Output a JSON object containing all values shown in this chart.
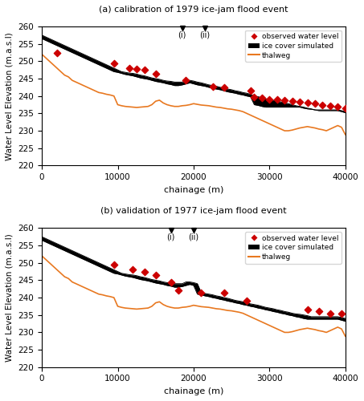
{
  "title_a": "(a) calibration of 1979 ice-jam flood event",
  "title_b": "(b) validation of 1977 ice-jam flood event",
  "xlabel": "chainage (m)",
  "ylabel": "Water Level Elevation (m.a.s.l)",
  "xlim": [
    0,
    40000
  ],
  "ylim": [
    220,
    260
  ],
  "yticks": [
    220,
    225,
    230,
    235,
    240,
    245,
    250,
    255,
    260
  ],
  "xticks": [
    0,
    10000,
    20000,
    30000,
    40000
  ],
  "marker_i_x_a": 18500,
  "marker_ii_x_a": 21500,
  "marker_i_x_b": 17000,
  "marker_ii_x_b": 20000,
  "thalweg_x": [
    0,
    500,
    1000,
    1500,
    2000,
    2500,
    3000,
    3500,
    4000,
    4500,
    5000,
    5500,
    6000,
    6500,
    7000,
    7500,
    8000,
    8500,
    9000,
    9500,
    10000,
    10500,
    11000,
    11500,
    12000,
    12500,
    13000,
    13500,
    14000,
    14500,
    15000,
    15500,
    16000,
    16500,
    17000,
    17500,
    18000,
    18500,
    19000,
    19500,
    20000,
    20500,
    21000,
    21500,
    22000,
    22500,
    23000,
    23500,
    24000,
    24500,
    25000,
    25500,
    26000,
    26500,
    27000,
    27500,
    28000,
    28500,
    29000,
    29500,
    30000,
    30500,
    31000,
    31500,
    32000,
    32500,
    33000,
    33500,
    34000,
    34500,
    35000,
    35500,
    36000,
    36500,
    37000,
    37500,
    38000,
    38500,
    39000,
    39500,
    40000
  ],
  "thalweg_y": [
    252.0,
    251.0,
    250.0,
    249.0,
    248.0,
    247.0,
    246.0,
    245.5,
    244.5,
    244.0,
    243.5,
    243.0,
    242.5,
    242.0,
    241.5,
    241.0,
    240.8,
    240.5,
    240.3,
    240.0,
    237.5,
    237.2,
    237.0,
    236.9,
    236.8,
    236.7,
    236.8,
    236.9,
    237.0,
    237.5,
    238.5,
    238.8,
    238.0,
    237.5,
    237.2,
    237.0,
    237.0,
    237.2,
    237.3,
    237.5,
    237.8,
    237.6,
    237.4,
    237.3,
    237.2,
    237.0,
    236.8,
    236.7,
    236.5,
    236.3,
    236.2,
    236.0,
    235.8,
    235.5,
    235.0,
    234.5,
    234.0,
    233.5,
    233.0,
    232.5,
    232.0,
    231.5,
    231.0,
    230.5,
    230.0,
    230.0,
    230.2,
    230.5,
    230.8,
    231.0,
    231.2,
    231.0,
    230.8,
    230.5,
    230.3,
    230.0,
    230.5,
    231.0,
    231.5,
    231.0,
    228.9
  ],
  "ice_x": [
    0,
    500,
    1000,
    1500,
    2000,
    2500,
    3000,
    3500,
    4000,
    4500,
    5000,
    5500,
    6000,
    6500,
    7000,
    7500,
    8000,
    8500,
    9000,
    9500,
    10000,
    10500,
    11000,
    11500,
    12000,
    12500,
    13000,
    13500,
    14000,
    14500,
    15000,
    15500,
    16000,
    16500,
    17000,
    17500,
    18000,
    18500,
    19000,
    19500,
    20000,
    20500,
    21000,
    21500,
    22000,
    22500,
    23000,
    23500,
    24000,
    24500,
    25000,
    25500,
    26000,
    26500,
    27000,
    27500,
    28000,
    28500,
    29000,
    29500,
    30000,
    30500,
    31000,
    31500,
    32000,
    32500,
    33000,
    33500,
    34000,
    34500,
    35000,
    35500,
    36000,
    36500,
    37000,
    37500,
    38000,
    38500,
    39000,
    39500,
    40000
  ],
  "ice_upper_a": [
    257.5,
    257.0,
    256.5,
    256.0,
    255.5,
    255.0,
    254.5,
    254.0,
    253.5,
    253.0,
    252.5,
    252.0,
    251.5,
    251.0,
    250.5,
    250.0,
    249.5,
    249.0,
    248.5,
    248.0,
    247.5,
    247.0,
    246.8,
    246.6,
    246.5,
    246.3,
    246.0,
    245.8,
    245.5,
    245.2,
    245.0,
    244.8,
    244.5,
    244.3,
    244.2,
    244.0,
    244.0,
    244.0,
    244.5,
    244.5,
    244.3,
    244.0,
    243.8,
    243.5,
    243.2,
    243.0,
    242.8,
    242.5,
    242.3,
    242.0,
    241.8,
    241.5,
    241.3,
    241.0,
    240.8,
    240.5,
    240.0,
    239.8,
    239.5,
    239.2,
    239.0,
    238.8,
    238.5,
    238.3,
    238.0,
    237.8,
    237.5,
    237.2,
    237.0,
    236.8,
    236.5,
    236.3,
    236.0,
    236.0,
    236.0,
    236.0,
    236.0,
    236.0,
    236.0,
    235.8,
    235.5
  ],
  "ice_lower_a": [
    256.5,
    256.0,
    255.5,
    255.0,
    254.5,
    254.0,
    253.5,
    253.0,
    252.5,
    252.0,
    251.5,
    251.0,
    250.5,
    250.0,
    249.5,
    249.0,
    248.5,
    248.0,
    247.5,
    247.0,
    246.8,
    246.5,
    246.2,
    246.0,
    245.8,
    245.5,
    245.2,
    245.0,
    244.8,
    244.5,
    244.2,
    244.0,
    243.8,
    243.5,
    243.3,
    243.0,
    243.0,
    243.2,
    243.5,
    243.8,
    243.5,
    243.2,
    243.0,
    242.8,
    242.5,
    242.2,
    242.0,
    241.8,
    241.5,
    241.2,
    241.0,
    240.8,
    240.5,
    240.3,
    240.0,
    239.8,
    237.5,
    237.3,
    237.0,
    236.8,
    236.8,
    236.8,
    236.8,
    236.8,
    236.8,
    236.8,
    236.8,
    236.8,
    236.8,
    236.5,
    236.3,
    236.2,
    236.0,
    235.8,
    235.8,
    235.8,
    235.8,
    235.8,
    235.8,
    235.5,
    235.2
  ],
  "ice_upper_b": [
    257.5,
    257.0,
    256.5,
    256.0,
    255.5,
    255.0,
    254.5,
    254.0,
    253.5,
    253.0,
    252.5,
    252.0,
    251.5,
    251.0,
    250.5,
    250.0,
    249.5,
    249.0,
    248.5,
    248.0,
    247.5,
    247.0,
    246.8,
    246.6,
    246.5,
    246.3,
    246.0,
    245.8,
    245.5,
    245.2,
    245.0,
    244.8,
    244.5,
    244.3,
    244.2,
    244.0,
    244.0,
    244.0,
    244.5,
    244.5,
    244.3,
    244.0,
    241.5,
    241.2,
    241.0,
    240.8,
    240.5,
    240.3,
    240.0,
    239.8,
    239.5,
    239.2,
    239.0,
    238.8,
    238.5,
    238.2,
    238.0,
    237.8,
    237.5,
    237.2,
    237.0,
    236.8,
    236.5,
    236.3,
    236.0,
    235.8,
    235.5,
    235.3,
    235.2,
    235.0,
    234.8,
    234.5,
    234.5,
    234.5,
    234.5,
    234.5,
    234.5,
    234.5,
    234.5,
    234.3,
    234.0
  ],
  "ice_lower_b": [
    256.5,
    256.0,
    255.5,
    255.0,
    254.5,
    254.0,
    253.5,
    253.0,
    252.5,
    252.0,
    251.5,
    251.0,
    250.5,
    250.0,
    249.5,
    249.0,
    248.5,
    248.0,
    247.5,
    247.0,
    246.8,
    246.5,
    246.2,
    246.0,
    245.8,
    245.5,
    245.2,
    245.0,
    244.8,
    244.5,
    244.2,
    244.0,
    243.8,
    243.5,
    243.3,
    243.0,
    243.0,
    243.2,
    243.5,
    243.8,
    243.5,
    241.0,
    240.8,
    240.5,
    240.3,
    240.0,
    239.8,
    239.5,
    239.3,
    239.0,
    238.8,
    238.5,
    238.3,
    238.0,
    237.8,
    237.5,
    237.3,
    237.0,
    236.8,
    236.5,
    236.3,
    236.0,
    235.8,
    235.5,
    235.3,
    235.0,
    234.8,
    234.5,
    234.3,
    234.0,
    233.8,
    233.8,
    233.8,
    233.8,
    233.8,
    233.8,
    233.8,
    233.8,
    233.8,
    233.5,
    233.2
  ],
  "obs_a_x": [
    2000,
    9500,
    11500,
    12500,
    13500,
    15000,
    19000,
    22500,
    24000,
    27500,
    28000,
    29000,
    30000,
    31000,
    32000,
    33000,
    34000,
    35000,
    36000,
    37000,
    38000,
    39000,
    40000
  ],
  "obs_a_y": [
    252.5,
    249.5,
    248.0,
    247.8,
    247.5,
    246.5,
    244.5,
    242.8,
    242.5,
    241.5,
    239.8,
    239.5,
    239.0,
    239.0,
    238.8,
    238.5,
    238.2,
    238.0,
    237.8,
    237.5,
    237.2,
    237.0,
    236.5
  ],
  "obs_b_x": [
    9500,
    12000,
    13500,
    15000,
    17000,
    18000,
    21000,
    24000,
    27000,
    35000,
    36500,
    38000,
    39500
  ],
  "obs_b_y": [
    249.5,
    248.0,
    247.5,
    246.5,
    244.5,
    242.0,
    241.5,
    241.5,
    239.0,
    236.5,
    236.0,
    235.5,
    235.5
  ],
  "thalweg_color": "#E87820",
  "ice_color": "black",
  "obs_color": "#CC0000",
  "background_color": "white"
}
